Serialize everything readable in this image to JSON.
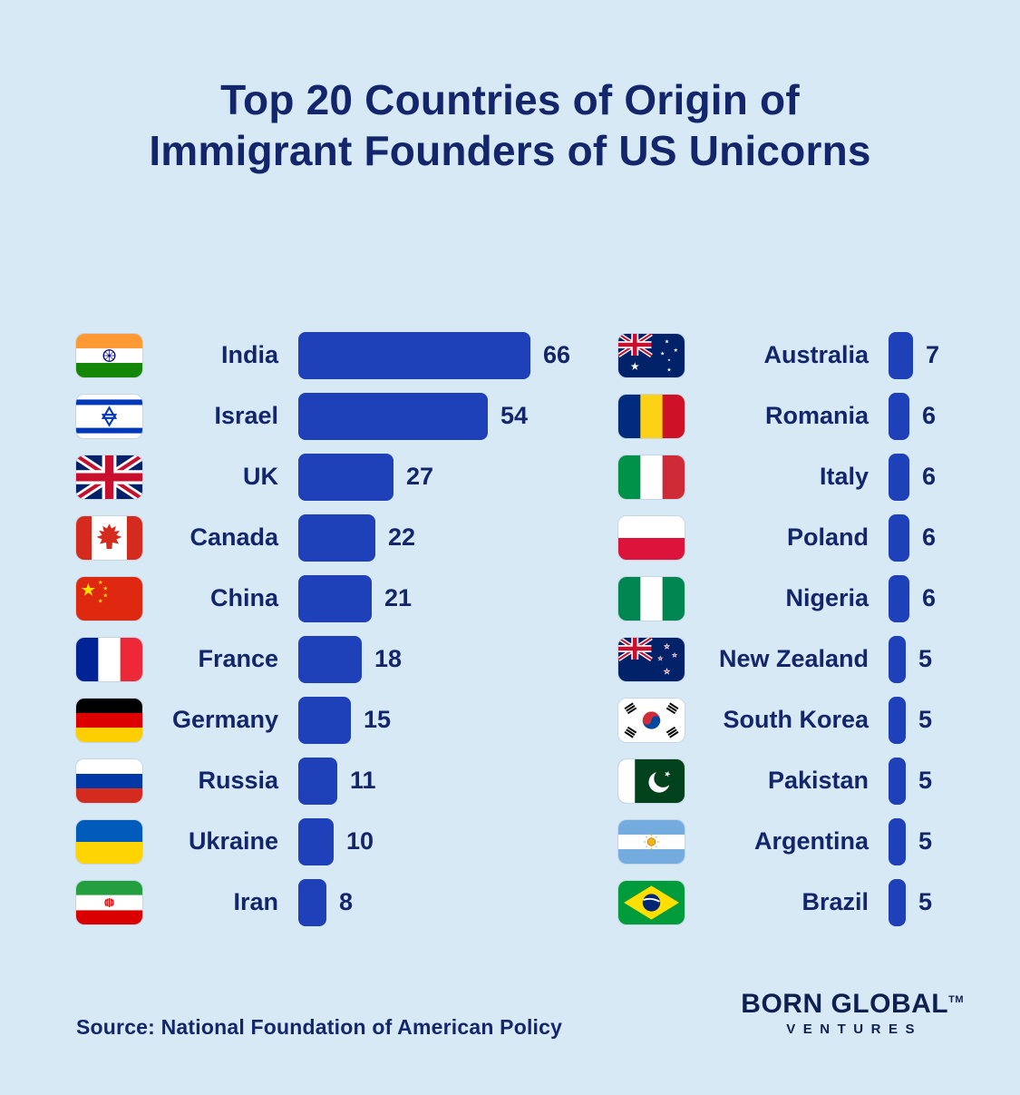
{
  "header": {
    "title": "Top 20 Countries of Origin of\nImmigrant Founders of US Unicorns"
  },
  "chart_data": {
    "type": "bar",
    "orientation": "horizontal",
    "title": "Top 20 Countries of Origin of Immigrant Founders of US Unicorns",
    "max_value": 66,
    "value_range": [
      0,
      66
    ],
    "columns": [
      {
        "items": [
          {
            "country": "India",
            "value": 66,
            "flag": "india"
          },
          {
            "country": "Israel",
            "value": 54,
            "flag": "israel"
          },
          {
            "country": "UK",
            "value": 27,
            "flag": "uk"
          },
          {
            "country": "Canada",
            "value": 22,
            "flag": "canada"
          },
          {
            "country": "China",
            "value": 21,
            "flag": "china"
          },
          {
            "country": "France",
            "value": 18,
            "flag": "france"
          },
          {
            "country": "Germany",
            "value": 15,
            "flag": "germany"
          },
          {
            "country": "Russia",
            "value": 11,
            "flag": "russia"
          },
          {
            "country": "Ukraine",
            "value": 10,
            "flag": "ukraine"
          },
          {
            "country": "Iran",
            "value": 8,
            "flag": "iran"
          }
        ]
      },
      {
        "items": [
          {
            "country": "Australia",
            "value": 7,
            "flag": "australia"
          },
          {
            "country": "Romania",
            "value": 6,
            "flag": "romania"
          },
          {
            "country": "Italy",
            "value": 6,
            "flag": "italy"
          },
          {
            "country": "Poland",
            "value": 6,
            "flag": "poland"
          },
          {
            "country": "Nigeria",
            "value": 6,
            "flag": "nigeria"
          },
          {
            "country": "New Zealand",
            "value": 5,
            "flag": "new-zealand"
          },
          {
            "country": "South Korea",
            "value": 5,
            "flag": "south-korea"
          },
          {
            "country": "Pakistan",
            "value": 5,
            "flag": "pakistan"
          },
          {
            "country": "Argentina",
            "value": 5,
            "flag": "argentina"
          },
          {
            "country": "Brazil",
            "value": 5,
            "flag": "brazil"
          }
        ]
      }
    ]
  },
  "footer": {
    "source": "Source: National Foundation of American Policy",
    "brand_name": "BORN GLOBAL",
    "brand_tm": "TM",
    "brand_sub": "VENTURES"
  },
  "colors": {
    "background": "#d7e9f5",
    "bar": "#1e40b8",
    "text": "#13266b"
  }
}
